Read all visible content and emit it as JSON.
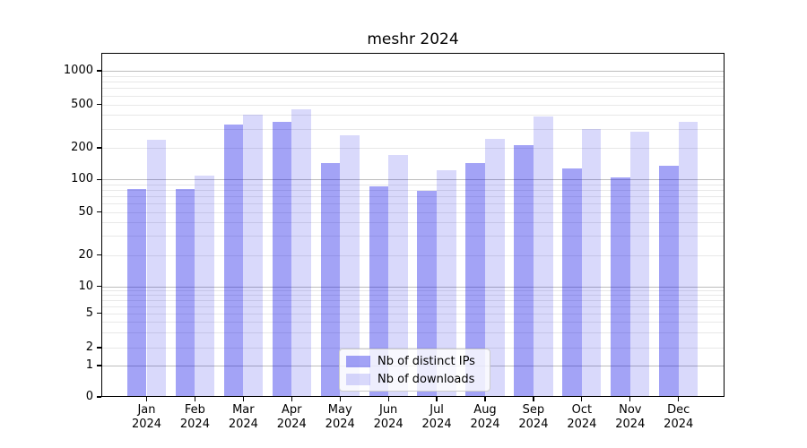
{
  "chart_data": {
    "type": "bar",
    "title": "meshr 2024",
    "categories": [
      "Jan 2024",
      "Feb 2024",
      "Mar 2024",
      "Apr 2024",
      "May 2024",
      "Jun 2024",
      "Jul 2024",
      "Aug 2024",
      "Sep 2024",
      "Oct 2024",
      "Nov 2024",
      "Dec 2024"
    ],
    "series": [
      {
        "name": "Nb of distinct IPs",
        "color": "rgba(0,0,230,0.36)",
        "values": [
          82,
          82,
          325,
          350,
          144,
          86,
          78,
          142,
          210,
          127,
          105,
          134
        ]
      },
      {
        "name": "Nb of downloads",
        "color": "rgba(0,0,230,0.15)",
        "values": [
          235,
          108,
          407,
          455,
          262,
          172,
          123,
          240,
          385,
          300,
          282,
          347
        ]
      }
    ],
    "xlabel": "",
    "ylabel": "",
    "yscale": "symlog",
    "yticks": [
      0,
      1,
      2,
      5,
      10,
      20,
      50,
      100,
      200,
      500,
      1000
    ],
    "ylim": [
      0,
      1500
    ],
    "grid": "horizontal major+minor (log decades)",
    "legend_position": "lower center"
  },
  "colors": {
    "background": "#ffffff",
    "bar_distinct_ips": "rgba(0,0,230,0.36)",
    "bar_downloads": "rgba(0,0,230,0.15)",
    "major_gridline": "#bdbdbd",
    "minor_gridline": "#e8e8e8",
    "axis": "#000000",
    "legend_border": "#cccccc"
  }
}
